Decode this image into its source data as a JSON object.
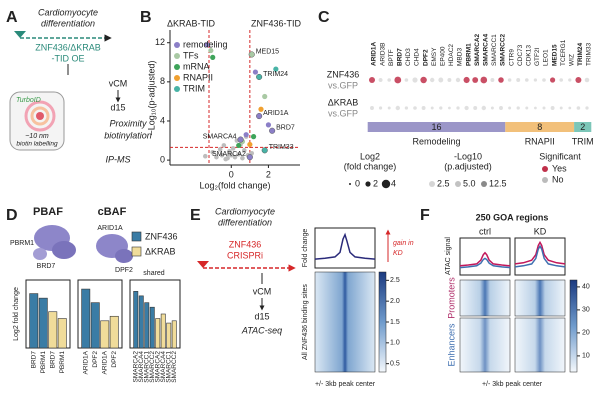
{
  "figure": {
    "letters": [
      "A",
      "B",
      "C",
      "D",
      "E",
      "F"
    ],
    "A": {
      "title": [
        "Cardiomyocyte",
        "differentiation"
      ],
      "construct": [
        "ZNF436/ΔKRAB",
        "-TID OE"
      ],
      "turboid": "TurboID",
      "radius": "~10 nm",
      "radius_note": "biotin labelling",
      "stage": "vCM",
      "day": "d15",
      "method": [
        "Proximity",
        "biotinylation"
      ],
      "assay": "IP-MS"
    },
    "D": {
      "subunits": [
        "PBRM1",
        "BRD7",
        "ARID1A",
        "DPF2"
      ]
    },
    "E": {
      "title": [
        "Cardiomyocyte",
        "differentiation"
      ],
      "construct": [
        "ZNF436",
        "CRISPRi"
      ],
      "stage": "vCM",
      "day": "d15",
      "assay": "ATAC-seq"
    }
  },
  "chart_data": [
    {
      "type": "scatter",
      "side_labels": [
        "ΔKRAB-TID",
        "ZNF436-TID"
      ],
      "xlabel": "Log₂(fold change)",
      "ylabel": "−Log₁₀(p-adjusted)",
      "xlim": [
        -3.3,
        3.7
      ],
      "xticks": [
        0,
        2
      ],
      "ylim": [
        -0.5,
        13.3
      ],
      "yticks": [
        0,
        4,
        8,
        12
      ],
      "thresholds": {
        "x": [
          -1.2,
          1
        ],
        "y": 1.3,
        "color": "#d62728"
      },
      "series": [
        {
          "name": "remodeling",
          "color": "#8b7fc7",
          "x": [
            -1.3,
            1.3,
            0.8,
            2.0
          ],
          "y": [
            11.8,
            9.0,
            2.6,
            3.6
          ]
        },
        {
          "name": "TFs",
          "color": "#a9c9a4",
          "x": [
            -1.1,
            0.6,
            1.8
          ],
          "y": [
            11.2,
            1.9,
            6.5
          ]
        },
        {
          "name": "mRNA",
          "color": "#3ea45a",
          "x": [
            -1.0,
            0.4,
            1.2
          ],
          "y": [
            10.5,
            1.5,
            2.4
          ]
        },
        {
          "name": "RNAPII",
          "color": "#f0a030",
          "x": [
            1.0,
            1.6
          ],
          "y": [
            1.6,
            5.2
          ]
        },
        {
          "name": "TRIM",
          "color": "#48b3a6",
          "x": [
            2.4
          ],
          "y": [
            9.3
          ]
        }
      ],
      "other_points": {
        "color": "#bdbdbd",
        "x": [
          -0.3,
          0.2,
          -0.5,
          0.4,
          -0.1,
          0.6,
          -0.8,
          0.1,
          0.9,
          -0.4,
          0.3,
          -0.2,
          0.7,
          -1.0,
          0.5,
          -0.6,
          1.1,
          0.0,
          -1.4,
          0.8
        ],
        "y": [
          0.1,
          0.3,
          0.5,
          0.6,
          0.9,
          0.2,
          0.3,
          1.2,
          0.5,
          1.5,
          2.0,
          0.2,
          1.0,
          0.8,
          1.6,
          1.1,
          0.7,
          0.5,
          0.4,
          2.4
        ]
      },
      "labeled_points": [
        {
          "label": "MED15",
          "x": 1.1,
          "y": 10.8,
          "color": "#a9c9a4"
        },
        {
          "label": "TRIM24",
          "x": 1.5,
          "y": 8.5,
          "color": "#48b3a6"
        },
        {
          "label": "ARID1A",
          "x": 1.5,
          "y": 4.5,
          "color": "#8b7fc7"
        },
        {
          "label": "BRD7",
          "x": 2.2,
          "y": 3.0,
          "color": "#8b7fc7"
        },
        {
          "label": "TRIM33",
          "x": 1.8,
          "y": 1.0,
          "color": "#48b3a6"
        },
        {
          "label": "SMARCA4",
          "x": 0.5,
          "y": 2.1,
          "color": "#8b7fc7"
        },
        {
          "label": "SMARCA2",
          "x": 1.0,
          "y": 0.3,
          "color": "#8b7fc7"
        }
      ]
    },
    {
      "type": "dotplot",
      "columns": [
        "ARID1A",
        "ARID3B",
        "BPTF",
        "BRD7",
        "CHD3",
        "CHD4",
        "DPF2",
        "EMSY",
        "EP400",
        "HDAC2",
        "MBD3",
        "PBRM1",
        "SMARCA2",
        "SMARCA4",
        "SMARCC1",
        "SMARCC2",
        "CTR9",
        "CDC73",
        "CDK13",
        "GTF2I",
        "LEO1",
        "MED15",
        "TCERG1",
        "WIZ",
        "TRIM24",
        "TRIM33"
      ],
      "rows": [
        {
          "name": "ZNF436",
          "sub": "vs.GFP",
          "fold_change": [
            2.5,
            1.2,
            1.0,
            3.0,
            1.0,
            2.0,
            2.8,
            1.5,
            1.8,
            1.2,
            1.5,
            2.6,
            2.4,
            2.9,
            1.2,
            2.2,
            1.0,
            1.2,
            1.0,
            0.8,
            1.0,
            2.0,
            1.0,
            0.8,
            2.5,
            1.6
          ],
          "significant": [
            true,
            false,
            false,
            true,
            false,
            false,
            true,
            false,
            false,
            false,
            false,
            true,
            true,
            true,
            false,
            true,
            false,
            false,
            false,
            false,
            false,
            true,
            false,
            false,
            true,
            false
          ]
        },
        {
          "name": "ΔKRAB",
          "sub": "vs.GFP",
          "fold_change": [
            1.2,
            0.8,
            0.6,
            1.5,
            0.8,
            1.0,
            1.2,
            0.6,
            0.8,
            0.5,
            0.8,
            1.4,
            1.2,
            1.5,
            0.6,
            1.2,
            0.6,
            0.8,
            0.6,
            0.5,
            0.6,
            1.2,
            0.6,
            0.5,
            1.0,
            0.8
          ],
          "significant": [
            false,
            false,
            false,
            false,
            false,
            false,
            false,
            false,
            false,
            false,
            false,
            false,
            false,
            false,
            false,
            false,
            false,
            false,
            false,
            false,
            false,
            false,
            false,
            false,
            false,
            false
          ]
        }
      ],
      "groups": [
        {
          "name": "Remodeling",
          "count": 16,
          "color": "#9b96c8"
        },
        {
          "name": "RNAPII",
          "count": 8,
          "color": "#f2c07a"
        },
        {
          "name": "TRIM",
          "count": 2,
          "color": "#7cc6b8"
        }
      ],
      "size_legend": {
        "title": [
          "Log2",
          "(fold change)"
        ],
        "values": [
          0,
          2,
          4
        ]
      },
      "color_legend": {
        "title": [
          "-Log10",
          "(p.adjusted)"
        ],
        "values": [
          2.5,
          {
            "value": 5,
            "label": "5.0"
          },
          12.5
        ]
      },
      "sig_legend": {
        "title": "Significant",
        "items": [
          {
            "label": "Yes",
            "color": "#c0304a"
          },
          {
            "label": "No",
            "color": "#bbbbbb"
          }
        ]
      }
    },
    {
      "type": "bar",
      "title": "PBAF",
      "ylabel": "Log2 fold change",
      "categories": [
        "BRD7",
        "PBRM1"
      ],
      "ylim": [
        0,
        3
      ],
      "series": [
        {
          "name": "ZNF436",
          "color": "#3a7ca5",
          "values": [
            2.4,
            2.2
          ]
        },
        {
          "name": "ΔKRAB",
          "color": "#f0dc9a",
          "values": [
            1.6,
            1.3
          ]
        }
      ]
    },
    {
      "type": "bar",
      "title": "cBAF",
      "categories": [
        "ARID1A",
        "DPF2"
      ],
      "ylim": [
        0,
        3
      ],
      "series": [
        {
          "name": "ZNF436",
          "color": "#3a7ca5",
          "values": [
            2.6,
            2.0
          ]
        },
        {
          "name": "ΔKRAB",
          "color": "#f0dc9a",
          "values": [
            1.2,
            1.4
          ]
        }
      ]
    },
    {
      "type": "bar",
      "title": "shared",
      "categories": [
        "SMARCA2",
        "SMARCA4",
        "SMARCC1",
        "SMARCC2"
      ],
      "ylim": [
        0,
        3
      ],
      "series": [
        {
          "name": "ZNF436",
          "color": "#3a7ca5",
          "values": [
            2.5,
            2.3,
            2.0,
            1.8
          ]
        },
        {
          "name": "ΔKRAB",
          "color": "#f0dc9a",
          "values": [
            1.3,
            1.5,
            1.1,
            1.2
          ]
        }
      ]
    },
    {
      "type": "line",
      "ylabel": "Fold change",
      "heatmap_label": "All ZNF436 binding sites",
      "xlabel": "+/- 3kb peak center",
      "annotation": [
        "gain in",
        "KD"
      ],
      "x": [
        -3,
        -2,
        -1,
        -0.5,
        -0.2,
        0,
        0.2,
        0.5,
        1,
        2,
        3
      ],
      "xlim": [
        -3,
        3
      ],
      "ylim": [
        0.7,
        1.6
      ],
      "series": [
        {
          "color": "#2a2a7a",
          "values": [
            0.9,
            0.92,
            0.95,
            1.05,
            1.35,
            1.45,
            1.3,
            1.05,
            0.95,
            0.92,
            0.9
          ]
        }
      ],
      "colorbar": {
        "lim": [
          0.3,
          2.7
        ],
        "ticks": [
          0.5,
          {
            "value": 1,
            "label": "1.0"
          },
          1.5,
          {
            "value": 2,
            "label": "2.0"
          },
          2.5
        ]
      }
    },
    {
      "type": "profiles",
      "title": "250 GOA regions",
      "ylabel": "ATAC signal",
      "xlabel": "+/- 3kb peak center",
      "x": [
        -3,
        -2,
        -1,
        -0.5,
        -0.2,
        0,
        0.2,
        0.5,
        1,
        2,
        3
      ],
      "xlim": [
        -3,
        3
      ],
      "ylim": [
        0,
        1
      ],
      "facets": [
        {
          "name": "ctrl",
          "series": [
            {
              "color": "#c2185b",
              "values": [
                0.25,
                0.27,
                0.3,
                0.4,
                0.55,
                0.6,
                0.55,
                0.4,
                0.3,
                0.27,
                0.25
              ]
            },
            {
              "color": "#3f6fb0",
              "values": [
                0.2,
                0.22,
                0.25,
                0.32,
                0.42,
                0.45,
                0.42,
                0.32,
                0.25,
                0.22,
                0.2
              ]
            }
          ]
        },
        {
          "name": "KD",
          "series": [
            {
              "color": "#c2185b",
              "values": [
                0.3,
                0.33,
                0.4,
                0.55,
                0.8,
                0.88,
                0.8,
                0.55,
                0.4,
                0.33,
                0.3
              ]
            },
            {
              "color": "#3f6fb0",
              "values": [
                0.22,
                0.25,
                0.3,
                0.45,
                0.7,
                0.78,
                0.7,
                0.45,
                0.3,
                0.25,
                0.22
              ]
            }
          ]
        }
      ],
      "rows": [
        {
          "name": "Promoters",
          "color": "#b0306a"
        },
        {
          "name": "Enhancers",
          "color": "#3f6fb0"
        }
      ],
      "colorbar": {
        "lim": [
          3,
          43
        ],
        "ticks": [
          10,
          20,
          30,
          40
        ]
      }
    }
  ]
}
